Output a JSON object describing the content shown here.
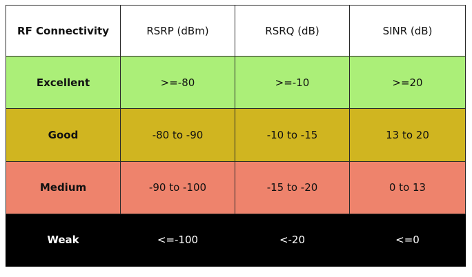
{
  "table": {
    "headers": [
      "RF Connectivity",
      "RSRP (dBm)",
      "RSRQ (dB)",
      "SINR (dB)"
    ],
    "rows": [
      {
        "category": "Excellent",
        "rsrp": ">=-80",
        "rsrq": ">=-10",
        "sinr": ">=20",
        "color": "#abef78"
      },
      {
        "category": "Good",
        "rsrp": "-80 to -90",
        "rsrq": "-10 to -15",
        "sinr": "13 to 20",
        "color": "#d0b520"
      },
      {
        "category": "Medium",
        "rsrp": "-90 to -100",
        "rsrq": "-15 to -20",
        "sinr": "0 to 13",
        "color": "#ee836c"
      },
      {
        "category": "Weak",
        "rsrp": "<=-100",
        "rsrq": "<-20",
        "sinr": "<=0",
        "color": "#000000"
      }
    ]
  }
}
